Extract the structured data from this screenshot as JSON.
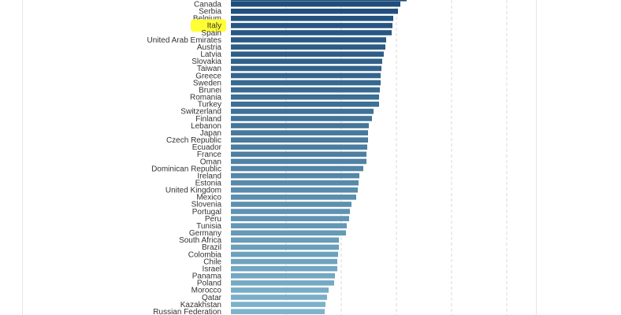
{
  "chart_data": {
    "type": "bar",
    "orientation": "horizontal",
    "title": "",
    "xlabel": "",
    "ylabel": "",
    "grid": true,
    "highlighted_category": "Italy",
    "colors": {
      "bar_top": "#1f4e7a",
      "bar_bottom": "#7eb3cc",
      "highlight": "#ffff33",
      "gridline": "#d9d9d9",
      "label_text": "#333333"
    },
    "categories": [
      "Canada",
      "Serbia",
      "Belgium",
      "Italy",
      "Spain",
      "United Arab Emirates",
      "Austria",
      "Latvia",
      "Slovakia",
      "Taiwan",
      "Greece",
      "Sweden",
      "Brunei",
      "Romania",
      "Turkey",
      "Switzerland",
      "Finland",
      "Lebanon",
      "Japan",
      "Czech Republic",
      "Ecuador",
      "France",
      "Oman",
      "Dominican Republic",
      "Ireland",
      "Estonia",
      "United Kingdom",
      "Mexico",
      "Slovenia",
      "Portugal",
      "Peru",
      "Tunisia",
      "Germany",
      "South Africa",
      "Brazil",
      "Colombia",
      "Chile",
      "Israel",
      "Panama",
      "Poland",
      "Morocco",
      "Qatar",
      "Kazakhstan",
      "Russian Federation"
    ],
    "values": [
      215,
      212,
      206,
      205,
      204,
      197,
      196,
      194,
      192,
      191,
      190,
      190,
      189,
      188,
      188,
      181,
      179,
      175,
      174,
      174,
      173,
      172,
      172,
      168,
      163,
      162,
      161,
      159,
      153,
      151,
      150,
      147,
      146,
      137,
      137,
      136,
      135,
      135,
      132,
      131,
      124,
      122,
      120,
      119
    ],
    "xlim": [
      0,
      400
    ]
  }
}
